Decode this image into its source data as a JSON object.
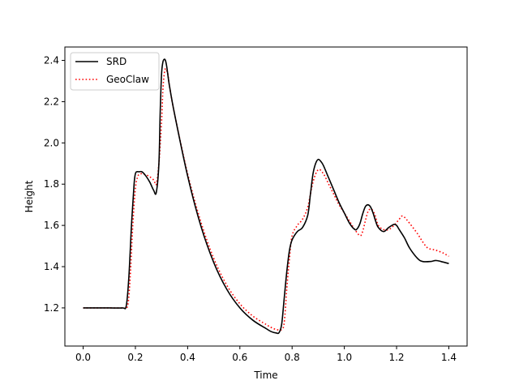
{
  "chart_data": {
    "type": "line",
    "title": "",
    "xlabel": "Time",
    "ylabel": "Height",
    "xlim": [
      -0.07,
      1.47
    ],
    "ylim": [
      1.015,
      2.465
    ],
    "xticks": [
      0.0,
      0.2,
      0.4,
      0.6,
      0.8,
      1.0,
      1.2,
      1.4
    ],
    "xtick_labels": [
      "0.0",
      "0.2",
      "0.4",
      "0.6",
      "0.8",
      "1.0",
      "1.2",
      "1.4"
    ],
    "yticks": [
      1.2,
      1.4,
      1.6,
      1.8,
      2.0,
      2.2,
      2.4
    ],
    "ytick_labels": [
      "1.2",
      "1.4",
      "1.6",
      "1.8",
      "2.0",
      "2.2",
      "2.4"
    ],
    "grid": false,
    "legend": {
      "placement": "top-left",
      "entries": [
        "SRD",
        "GeoClaw"
      ]
    },
    "series": [
      {
        "name": "SRD",
        "color": "#000000",
        "style": "solid",
        "x": [
          0.0,
          0.05,
          0.1,
          0.15,
          0.165,
          0.175,
          0.185,
          0.195,
          0.2,
          0.205,
          0.215,
          0.225,
          0.24,
          0.255,
          0.27,
          0.28,
          0.29,
          0.295,
          0.3,
          0.305,
          0.31,
          0.315,
          0.32,
          0.33,
          0.35,
          0.4,
          0.45,
          0.5,
          0.55,
          0.6,
          0.65,
          0.7,
          0.72,
          0.74,
          0.75,
          0.76,
          0.77,
          0.78,
          0.79,
          0.8,
          0.82,
          0.84,
          0.86,
          0.87,
          0.88,
          0.89,
          0.9,
          0.91,
          0.92,
          0.94,
          0.96,
          0.98,
          1.0,
          1.02,
          1.04,
          1.05,
          1.06,
          1.07,
          1.08,
          1.09,
          1.1,
          1.11,
          1.12,
          1.13,
          1.15,
          1.17,
          1.19,
          1.2,
          1.21,
          1.23,
          1.25,
          1.28,
          1.3,
          1.33,
          1.35,
          1.37,
          1.4
        ],
        "y": [
          1.2,
          1.2,
          1.2,
          1.2,
          1.21,
          1.35,
          1.6,
          1.8,
          1.85,
          1.86,
          1.86,
          1.86,
          1.84,
          1.81,
          1.77,
          1.76,
          1.9,
          2.15,
          2.33,
          2.39,
          2.405,
          2.4,
          2.37,
          2.28,
          2.14,
          1.84,
          1.6,
          1.42,
          1.29,
          1.2,
          1.14,
          1.1,
          1.085,
          1.078,
          1.08,
          1.12,
          1.25,
          1.38,
          1.48,
          1.53,
          1.57,
          1.59,
          1.65,
          1.75,
          1.85,
          1.9,
          1.92,
          1.91,
          1.89,
          1.83,
          1.77,
          1.71,
          1.66,
          1.61,
          1.58,
          1.585,
          1.61,
          1.655,
          1.69,
          1.7,
          1.69,
          1.66,
          1.62,
          1.59,
          1.57,
          1.59,
          1.605,
          1.6,
          1.58,
          1.54,
          1.49,
          1.44,
          1.425,
          1.425,
          1.43,
          1.425,
          1.415
        ]
      },
      {
        "name": "GeoClaw",
        "color": "#ff0000",
        "style": "dotted",
        "x": [
          0.0,
          0.05,
          0.1,
          0.15,
          0.17,
          0.18,
          0.19,
          0.2,
          0.21,
          0.22,
          0.23,
          0.25,
          0.27,
          0.28,
          0.29,
          0.3,
          0.305,
          0.31,
          0.315,
          0.32,
          0.325,
          0.33,
          0.35,
          0.4,
          0.45,
          0.5,
          0.55,
          0.6,
          0.65,
          0.7,
          0.72,
          0.74,
          0.76,
          0.77,
          0.78,
          0.79,
          0.8,
          0.82,
          0.84,
          0.86,
          0.88,
          0.9,
          0.92,
          0.94,
          0.96,
          0.98,
          1.0,
          1.02,
          1.04,
          1.06,
          1.07,
          1.08,
          1.09,
          1.1,
          1.11,
          1.12,
          1.13,
          1.15,
          1.17,
          1.19,
          1.21,
          1.22,
          1.23,
          1.25,
          1.28,
          1.3,
          1.32,
          1.35,
          1.38,
          1.4
        ],
        "y": [
          1.2,
          1.2,
          1.2,
          1.2,
          1.21,
          1.35,
          1.6,
          1.78,
          1.84,
          1.85,
          1.85,
          1.84,
          1.82,
          1.8,
          1.9,
          2.1,
          2.25,
          2.33,
          2.36,
          2.35,
          2.33,
          2.28,
          2.14,
          1.85,
          1.62,
          1.44,
          1.31,
          1.22,
          1.16,
          1.12,
          1.105,
          1.095,
          1.095,
          1.13,
          1.3,
          1.44,
          1.55,
          1.6,
          1.63,
          1.69,
          1.81,
          1.87,
          1.85,
          1.8,
          1.75,
          1.7,
          1.66,
          1.62,
          1.58,
          1.55,
          1.57,
          1.62,
          1.665,
          1.68,
          1.67,
          1.64,
          1.6,
          1.58,
          1.58,
          1.6,
          1.63,
          1.645,
          1.64,
          1.61,
          1.56,
          1.52,
          1.49,
          1.48,
          1.465,
          1.45
        ]
      }
    ]
  }
}
